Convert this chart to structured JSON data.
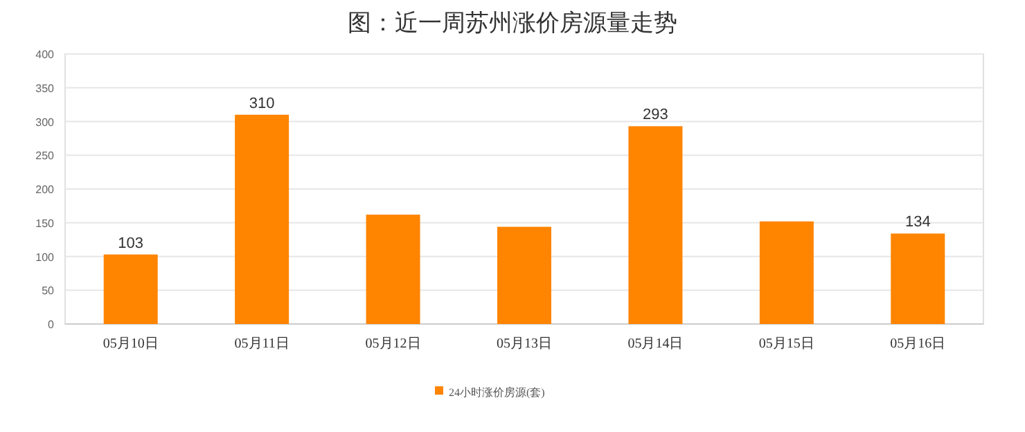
{
  "chart_data": {
    "type": "bar",
    "title": "图：近一周苏州涨价房源量走势",
    "categories": [
      "05月10日",
      "05月11日",
      "05月12日",
      "05月13日",
      "05月14日",
      "05月15日",
      "05月16日"
    ],
    "series": [
      {
        "name": "24小时涨价房源(套)",
        "color": "#ff8400",
        "values": [
          103,
          310,
          162,
          144,
          293,
          152,
          134
        ],
        "value_labels": [
          "103",
          "310",
          null,
          null,
          "293",
          null,
          "134"
        ]
      }
    ],
    "ylim": [
      0,
      400
    ],
    "yticks": [
      0,
      50,
      100,
      150,
      200,
      250,
      300,
      350,
      400
    ],
    "grid": "y",
    "legend": "bottom"
  }
}
